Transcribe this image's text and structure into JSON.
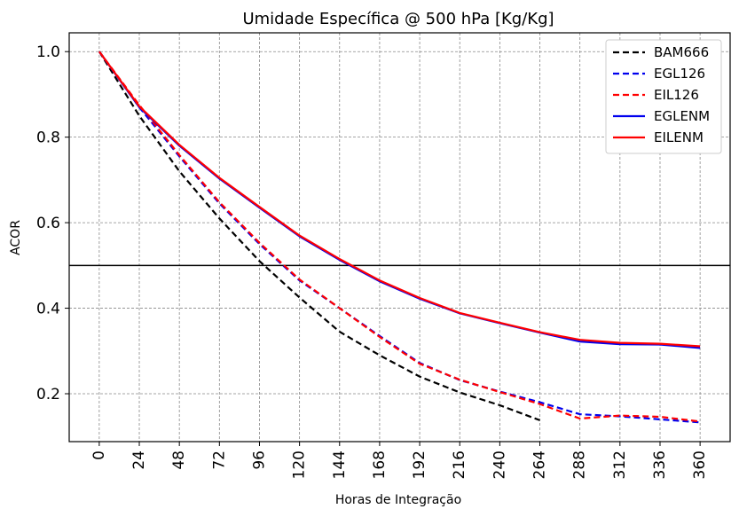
{
  "chart_data": {
    "type": "line",
    "title": "Umidade Específica @ 500 hPa [Kg/Kg]",
    "xlabel": "Horas de Integração",
    "ylabel": "ACOR",
    "x_ticks": [
      0,
      24,
      48,
      72,
      96,
      120,
      144,
      168,
      192,
      216,
      240,
      264,
      288,
      312,
      336,
      360
    ],
    "y_ticks": [
      0.2,
      0.4,
      0.6,
      0.8,
      1.0
    ],
    "xlim": [
      -18,
      378
    ],
    "ylim": [
      0.088,
      1.044
    ],
    "grid": true,
    "reference_line": 0.5,
    "legend_position": "top-right",
    "series": [
      {
        "name": "BAM666",
        "color": "#000000",
        "style": "dashed",
        "x": [
          0,
          24,
          48,
          72,
          96,
          120,
          144,
          168,
          192,
          216,
          240,
          264
        ],
        "y": [
          1.0,
          0.85,
          0.72,
          0.61,
          0.51,
          0.425,
          0.345,
          0.29,
          0.24,
          0.203,
          0.173,
          0.138
        ]
      },
      {
        "name": "EGL126",
        "color": "#0000ee",
        "style": "dashed",
        "x": [
          0,
          24,
          48,
          72,
          96,
          120,
          144,
          168,
          192,
          216,
          240,
          264,
          288,
          312,
          336,
          360
        ],
        "y": [
          1.0,
          0.87,
          0.755,
          0.645,
          0.55,
          0.465,
          0.4,
          0.335,
          0.272,
          0.232,
          0.205,
          0.18,
          0.152,
          0.147,
          0.14,
          0.133
        ]
      },
      {
        "name": "EIL126",
        "color": "#ff0000",
        "style": "dashed",
        "x": [
          0,
          24,
          48,
          72,
          96,
          120,
          144,
          168,
          192,
          216,
          240,
          264,
          288,
          312,
          336,
          360
        ],
        "y": [
          1.0,
          0.875,
          0.758,
          0.648,
          0.553,
          0.467,
          0.4,
          0.333,
          0.27,
          0.233,
          0.204,
          0.176,
          0.142,
          0.149,
          0.146,
          0.135
        ]
      },
      {
        "name": "EGLENM",
        "color": "#0000ee",
        "style": "solid",
        "x": [
          0,
          24,
          48,
          72,
          96,
          120,
          144,
          168,
          192,
          216,
          240,
          264,
          288,
          312,
          336,
          360
        ],
        "y": [
          1.0,
          0.87,
          0.78,
          0.703,
          0.635,
          0.568,
          0.513,
          0.463,
          0.422,
          0.388,
          0.365,
          0.343,
          0.322,
          0.316,
          0.315,
          0.307
        ]
      },
      {
        "name": "EILENM",
        "color": "#ff0000",
        "style": "solid",
        "x": [
          0,
          24,
          48,
          72,
          96,
          120,
          144,
          168,
          192,
          216,
          240,
          264,
          288,
          312,
          336,
          360
        ],
        "y": [
          1.0,
          0.872,
          0.782,
          0.705,
          0.637,
          0.57,
          0.515,
          0.465,
          0.424,
          0.389,
          0.366,
          0.344,
          0.326,
          0.319,
          0.317,
          0.311
        ]
      }
    ]
  }
}
